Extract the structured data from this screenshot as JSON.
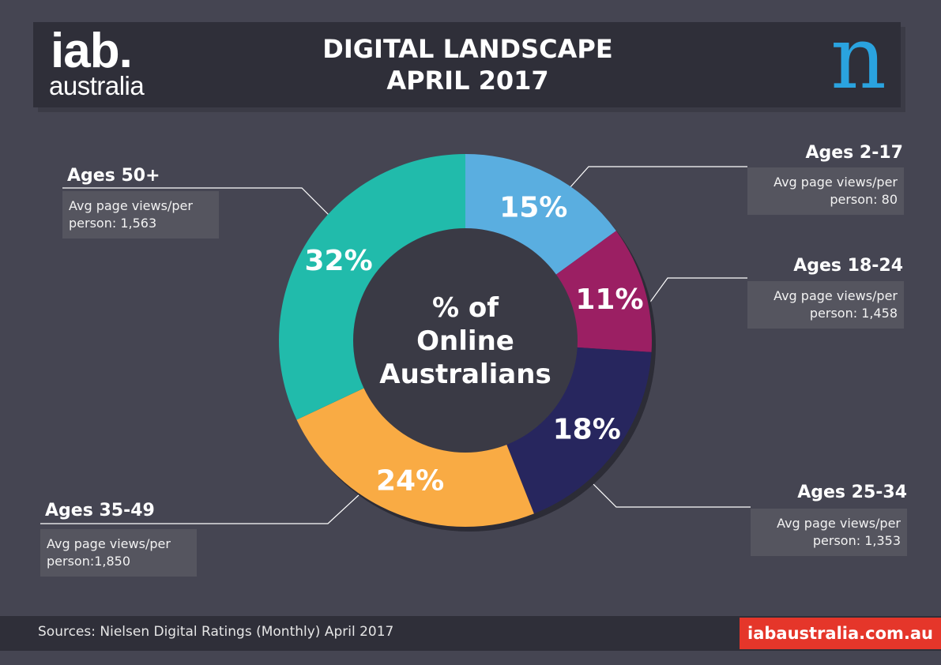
{
  "header": {
    "logo_iab": "iab.",
    "logo_australia": "australia",
    "title_line1": "DIGITAL LANDSCAPE",
    "title_line2": "APRIL 2017",
    "logo_n": "n"
  },
  "chart_data": {
    "type": "pie",
    "center_label": [
      "% of",
      "Online",
      "Australians"
    ],
    "slices": [
      {
        "age": "Ages 2-17",
        "pct": 15,
        "pct_label": "15%",
        "color": "#5aaee0",
        "info": [
          "Avg page views/per",
          "person: 80"
        ]
      },
      {
        "age": "Ages 18-24",
        "pct": 11,
        "pct_label": "11%",
        "color": "#9b1f63",
        "info": [
          "Avg page views/per",
          "person: 1,458"
        ]
      },
      {
        "age": "Ages 25-34",
        "pct": 18,
        "pct_label": "18%",
        "color": "#27265e",
        "info": [
          "Avg page views/per",
          "person: 1,353"
        ]
      },
      {
        "age": "Ages 35-49",
        "pct": 24,
        "pct_label": "24%",
        "color": "#f9ab44",
        "info": [
          "Avg page views/per",
          "person:1,850"
        ]
      },
      {
        "age": "Ages 50+",
        "pct": 32,
        "pct_label": "32%",
        "color": "#21bbab",
        "info": [
          "Avg page views/per",
          "person: 1,563"
        ]
      }
    ]
  },
  "footer": {
    "sources": "Sources: Nielsen Digital Ratings (Monthly) April 2017",
    "url": "iabaustralia.com.au",
    "url_bg": "#e5362a"
  }
}
